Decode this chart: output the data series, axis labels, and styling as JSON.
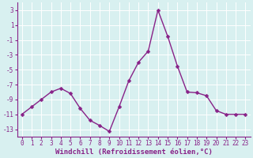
{
  "x": [
    0,
    1,
    2,
    3,
    4,
    5,
    6,
    7,
    8,
    9,
    10,
    11,
    12,
    13,
    14,
    15,
    16,
    17,
    18,
    19,
    20,
    21,
    22,
    23
  ],
  "y": [
    -11,
    -10,
    -9,
    -8,
    -7.5,
    -8.2,
    -10.2,
    -11.8,
    -12.5,
    -13.3,
    -10,
    -6.5,
    -4,
    -2.5,
    3,
    -0.5,
    -4.5,
    -8,
    -8.1,
    -8.5,
    -10.5,
    -11,
    -11,
    -11
  ],
  "line_color": "#882288",
  "marker_color": "#882288",
  "bg_color": "#d8f0f0",
  "grid_color": "#b8d8d8",
  "xlabel": "Windchill (Refroidissement éolien,°C)",
  "xlabel_fontsize": 6.5,
  "ylim": [
    -14,
    4
  ],
  "xlim": [
    -0.5,
    23.5
  ],
  "yticks": [
    3,
    1,
    -1,
    -3,
    -5,
    -7,
    -9,
    -11,
    -13
  ],
  "xticks": [
    0,
    1,
    2,
    3,
    4,
    5,
    6,
    7,
    8,
    9,
    10,
    11,
    12,
    13,
    14,
    15,
    16,
    17,
    18,
    19,
    20,
    21,
    22,
    23
  ],
  "tick_fontsize": 5.5,
  "line_width": 1.0,
  "marker_size": 2.5
}
